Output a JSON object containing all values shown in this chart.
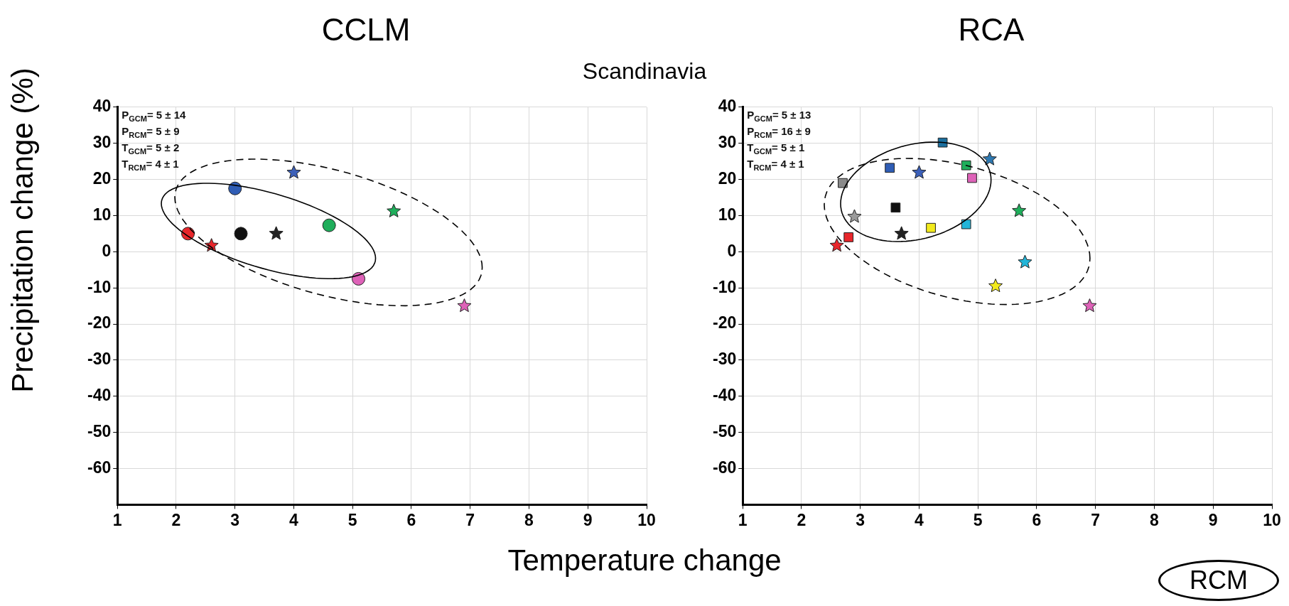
{
  "chart_data": [
    {
      "type": "scatter",
      "title": "CCLM",
      "subtitle": "Scandinavia",
      "xlabel": "Temperature change",
      "ylabel": "Precipitation change (%)",
      "annotations": [
        "P$_{GCM}$= 5 ± 14",
        "P$_{RCM}$= 5 ± 9",
        "T$_{GCM}$= 5 ± 2",
        "T$_{RCM}$= 4 ± 1"
      ],
      "xlim": [
        1,
        10
      ],
      "xticks": [
        1,
        2,
        3,
        4,
        5,
        6,
        7,
        8,
        9,
        10
      ],
      "ylim": [
        -70,
        40
      ],
      "yticks": [
        -60,
        -50,
        -40,
        -30,
        -20,
        -10,
        0,
        10,
        20,
        30,
        40
      ],
      "grid": true,
      "series": [
        {
          "type": "scatter",
          "marker": "circle",
          "x": [
            2.2,
            3.0,
            3.1,
            4.6,
            5.1
          ],
          "values": [
            5,
            17.5,
            5,
            7.3,
            -7.5
          ],
          "colors": [
            "#e8262b",
            "#2f5db5",
            "#111111",
            "#1fae5b",
            "#de62b8"
          ]
        },
        {
          "type": "scatter",
          "marker": "star",
          "x": [
            2.6,
            3.7,
            4.0,
            5.7,
            6.9
          ],
          "values": [
            1.7,
            5,
            21.9,
            11.2,
            -15
          ],
          "colors": [
            "#e8262b",
            "#222222",
            "#3b5fb8",
            "#1fae5b",
            "#de62b8"
          ]
        }
      ]
    },
    {
      "type": "scatter",
      "title": "RCA",
      "annotations": [
        "P$_{GCM}$= 5 ± 13",
        "P$_{RCM}$= 16 ± 9",
        "T$_{GCM}$= 5 ± 1",
        "T$_{RCM}$= 4 ± 1",
        "RCM"
      ],
      "xlim": [
        1,
        10
      ],
      "xticks": [
        1,
        2,
        3,
        4,
        5,
        6,
        7,
        8,
        9,
        10
      ],
      "ylim": [
        -70,
        40
      ],
      "yticks": [
        -60,
        -50,
        -40,
        -30,
        -20,
        -10,
        0,
        10,
        20,
        30,
        40
      ],
      "grid": true,
      "series": [
        {
          "type": "scatter",
          "marker": "square",
          "x": [
            2.7,
            2.8,
            3.5,
            3.6,
            4.2,
            4.4,
            4.8,
            4.9,
            4.8
          ],
          "values": [
            19,
            4,
            23.2,
            12.2,
            6.6,
            30.2,
            23.9,
            20.4,
            7.6
          ],
          "colors": [
            "#8a8a8a",
            "#e8262b",
            "#2f5db5",
            "#111111",
            "#f2ea1c",
            "#1a6e9e",
            "#1fae5b",
            "#de62b8",
            "#22b5d8"
          ]
        },
        {
          "type": "scatter",
          "marker": "star",
          "x": [
            2.6,
            2.9,
            3.7,
            4.0,
            5.2,
            5.7,
            5.8,
            5.3,
            6.9
          ],
          "values": [
            1.7,
            9.7,
            5,
            21.9,
            25.6,
            11.3,
            -2.9,
            -9.5,
            -15
          ],
          "colors": [
            "#e8262b",
            "#9a9a9a",
            "#222222",
            "#3b5fb8",
            "#2e78b0",
            "#1fae5b",
            "#22b5d8",
            "#f2ea1c",
            "#de62b8"
          ]
        }
      ]
    }
  ]
}
